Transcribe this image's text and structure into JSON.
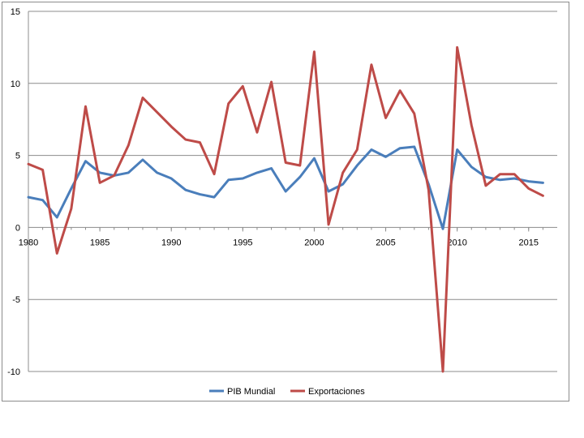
{
  "chart_data": {
    "type": "line",
    "title": "",
    "xlabel": "",
    "ylabel": "",
    "x": [
      1980,
      1981,
      1982,
      1983,
      1984,
      1985,
      1986,
      1987,
      1988,
      1989,
      1990,
      1991,
      1992,
      1993,
      1994,
      1995,
      1996,
      1997,
      1998,
      1999,
      2000,
      2001,
      2002,
      2003,
      2004,
      2005,
      2006,
      2007,
      2008,
      2009,
      2010,
      2011,
      2012,
      2013,
      2014,
      2015,
      2016
    ],
    "xticks": [
      "1980",
      "1985",
      "1990",
      "1995",
      "2000",
      "2005",
      "2010",
      "2015"
    ],
    "xtick_values": [
      1980,
      1985,
      1990,
      1995,
      2000,
      2005,
      2010,
      2015
    ],
    "yticks": [
      "15",
      "10",
      "5",
      "0",
      "-5",
      "-10"
    ],
    "ytick_values": [
      15,
      10,
      5,
      0,
      -5,
      -10
    ],
    "ylim": [
      -10,
      15
    ],
    "xlim": [
      1980,
      2017
    ],
    "grid": "horizontal",
    "legend_position": "bottom",
    "series": [
      {
        "name": "PIB Mundial",
        "color": "#4a7ebb",
        "values": [
          2.1,
          1.9,
          0.7,
          2.7,
          4.6,
          3.8,
          3.6,
          3.8,
          4.7,
          3.8,
          3.4,
          2.6,
          2.3,
          2.1,
          3.3,
          3.4,
          3.8,
          4.1,
          2.5,
          3.5,
          4.8,
          2.5,
          3.0,
          4.3,
          5.4,
          4.9,
          5.5,
          5.6,
          3.0,
          -0.1,
          5.4,
          4.2,
          3.5,
          3.3,
          3.4,
          3.2,
          3.1
        ]
      },
      {
        "name": "Exportaciones",
        "color": "#be4b48",
        "values": [
          4.4,
          4.0,
          -1.8,
          1.3,
          8.4,
          3.1,
          3.6,
          5.7,
          9.0,
          8.0,
          7.0,
          6.1,
          5.9,
          3.7,
          8.6,
          9.8,
          6.6,
          10.1,
          4.5,
          4.3,
          12.2,
          0.2,
          3.8,
          5.4,
          11.3,
          7.6,
          9.5,
          7.9,
          2.6,
          -10.0,
          12.5,
          7.1,
          2.9,
          3.7,
          3.7,
          2.7,
          2.2
        ]
      }
    ]
  }
}
